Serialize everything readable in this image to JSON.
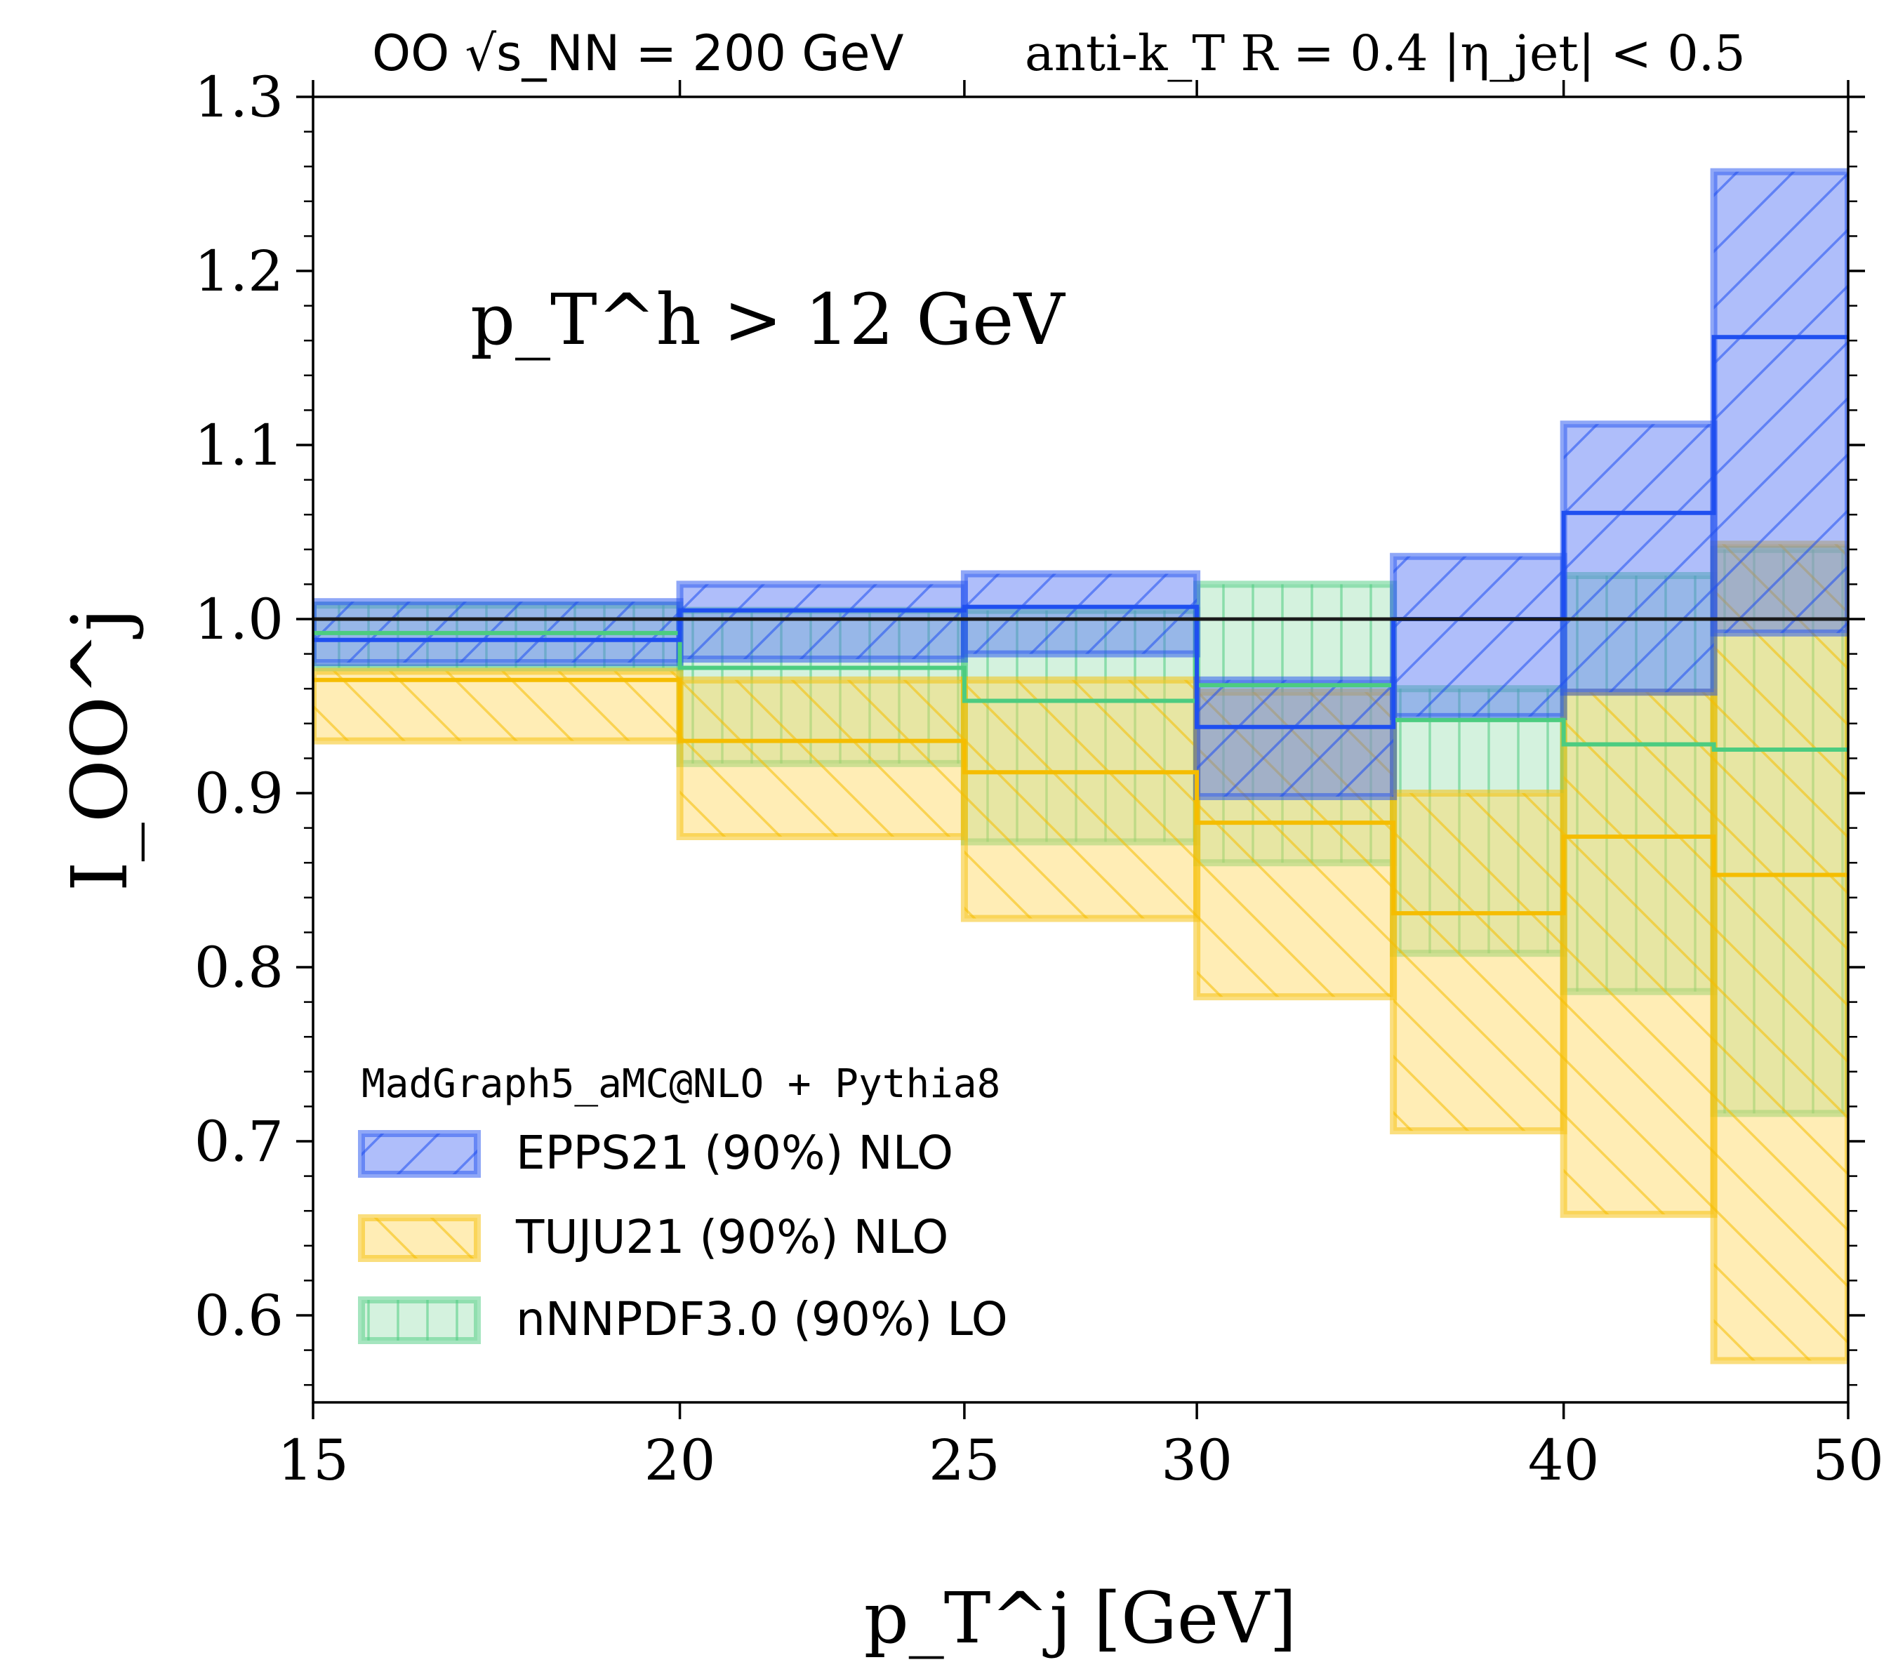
{
  "chart_data": {
    "type": "step",
    "title_left": "OO √s_NN = 200 GeV",
    "title_right": "anti-k_T  R = 0.4  |η_jet| < 0.5",
    "annotation": "p_T^h > 12 GeV",
    "xlabel": "p_T^j [GeV]",
    "ylabel": "I_OO^j",
    "x_scale": "log",
    "xlim": [
      15,
      50
    ],
    "ylim": [
      0.55,
      1.3
    ],
    "x_ticks": [
      15,
      20,
      25,
      30,
      40,
      50
    ],
    "x_tick_labels": [
      "15",
      "20",
      "25",
      "30",
      "40",
      "50"
    ],
    "y_ticks": [
      0.6,
      0.7,
      0.8,
      0.9,
      1.0,
      1.1,
      1.2,
      1.3
    ],
    "y_tick_labels": [
      "0.6",
      "0.7",
      "0.8",
      "0.9",
      "1.0",
      "1.1",
      "1.2",
      "1.3"
    ],
    "reference_line": 1.0,
    "bin_edges": [
      15,
      20,
      25,
      30,
      35,
      40,
      45,
      50
    ],
    "legend_title": "MadGraph5_aMC@NLO + Pythia8",
    "legend_location": "lower-left",
    "series": [
      {
        "name": "EPPS21 (90%) NLO",
        "color": "#1f4ff0",
        "fill": "#4d6ff5",
        "hatch": "forward-diagonal",
        "central": [
          0.988,
          1.005,
          1.007,
          0.938,
          1.0,
          1.061,
          1.162
        ],
        "lower": [
          0.975,
          0.977,
          0.98,
          0.898,
          0.944,
          0.958,
          0.992
        ],
        "upper": [
          1.01,
          1.02,
          1.026,
          0.965,
          1.036,
          1.112,
          1.257
        ]
      },
      {
        "name": "TUJU21 (90%) NLO",
        "color": "#f5bd00",
        "fill": "#ffd75a",
        "hatch": "backward-diagonal",
        "central": [
          0.965,
          0.93,
          0.912,
          0.883,
          0.831,
          0.875,
          0.853
        ],
        "lower": [
          0.93,
          0.875,
          0.828,
          0.783,
          0.706,
          0.658,
          0.574
        ],
        "upper": [
          0.97,
          0.965,
          0.965,
          0.958,
          0.9,
          0.958,
          1.043
        ]
      },
      {
        "name": "nNNPDF3.0 (90%) LO",
        "color": "#4ccc80",
        "fill": "#9fe3b6",
        "hatch": "vertical",
        "central": [
          0.992,
          0.972,
          0.953,
          0.962,
          0.942,
          0.928,
          0.925
        ],
        "lower": [
          0.972,
          0.917,
          0.872,
          0.86,
          0.808,
          0.786,
          0.716
        ],
        "upper": [
          1.008,
          1.005,
          1.005,
          1.02,
          0.96,
          1.025,
          1.04
        ]
      }
    ]
  }
}
